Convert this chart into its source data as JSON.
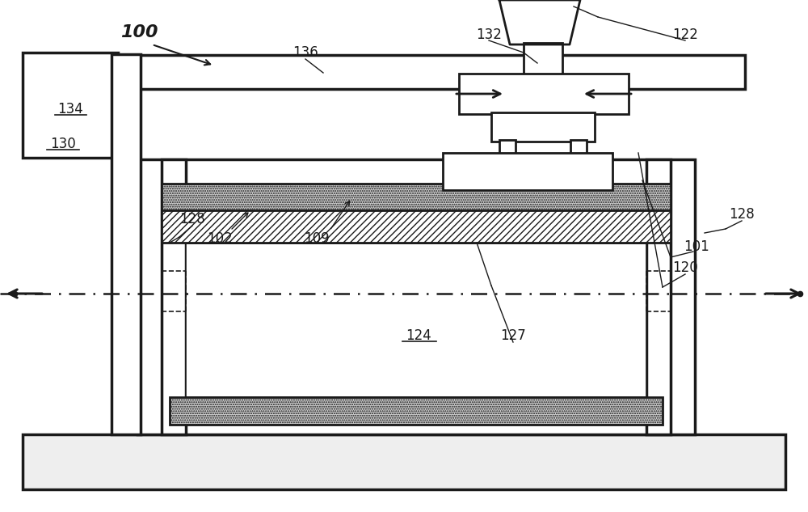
{
  "bg_color": "#ffffff",
  "line_color": "#1a1a1a",
  "lw_main": 2.0,
  "lw_thick": 2.5,
  "lw_thin": 1.2
}
